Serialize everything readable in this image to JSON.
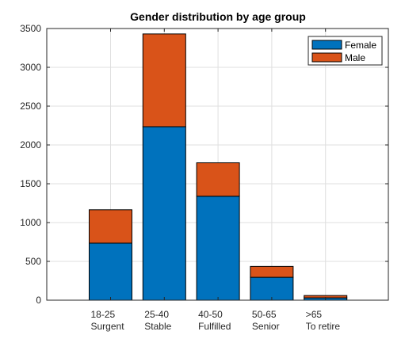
{
  "chart_data": {
    "type": "bar",
    "stacked": true,
    "title": "Gender distribution by age group",
    "xlabel": "",
    "ylabel": "",
    "categories": [
      {
        "line1": "18-25",
        "line2": "Surgent"
      },
      {
        "line1": "25-40",
        "line2": "Stable"
      },
      {
        "line1": "40-50",
        "line2": "Fulfilled"
      },
      {
        "line1": "50-65",
        "line2": "Senior"
      },
      {
        "line1": ">65",
        "line2": "To retire"
      }
    ],
    "series": [
      {
        "name": "Female",
        "color": "#0072BD",
        "values": [
          735,
          2235,
          1340,
          295,
          30
        ]
      },
      {
        "name": "Male",
        "color": "#D95319",
        "values": [
          430,
          1195,
          430,
          140,
          30
        ]
      }
    ],
    "ylim": [
      0,
      3500
    ],
    "yticks": [
      0,
      500,
      1000,
      1500,
      2000,
      2500,
      3000,
      3500
    ],
    "grid": true,
    "legend_position": "top-right"
  }
}
